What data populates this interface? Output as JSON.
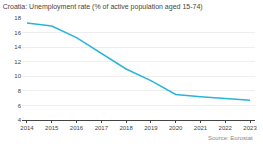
{
  "chart_data": {
    "type": "line",
    "title": "Croatia: Unemployment rate (% of active population aged 15-74)",
    "annotations": [
      "Source: Eurostat"
    ],
    "x": [
      2014,
      2015,
      2016,
      2017,
      2018,
      2019,
      2020,
      2021,
      2022,
      2023
    ],
    "values": [
      17.3,
      16.9,
      15.3,
      13.2,
      11.0,
      9.4,
      7.5,
      7.2,
      7.0,
      6.7
    ],
    "color": "#29b4d8",
    "xlim": [
      2013.8,
      2023.2
    ],
    "xticks": [
      2014,
      2015,
      2016,
      2017,
      2018,
      2019,
      2020,
      2021,
      2022,
      2023
    ],
    "ylim": [
      4,
      18
    ],
    "yticks": [
      4,
      6,
      8,
      10,
      12,
      14,
      16,
      18
    ],
    "grid": true
  }
}
